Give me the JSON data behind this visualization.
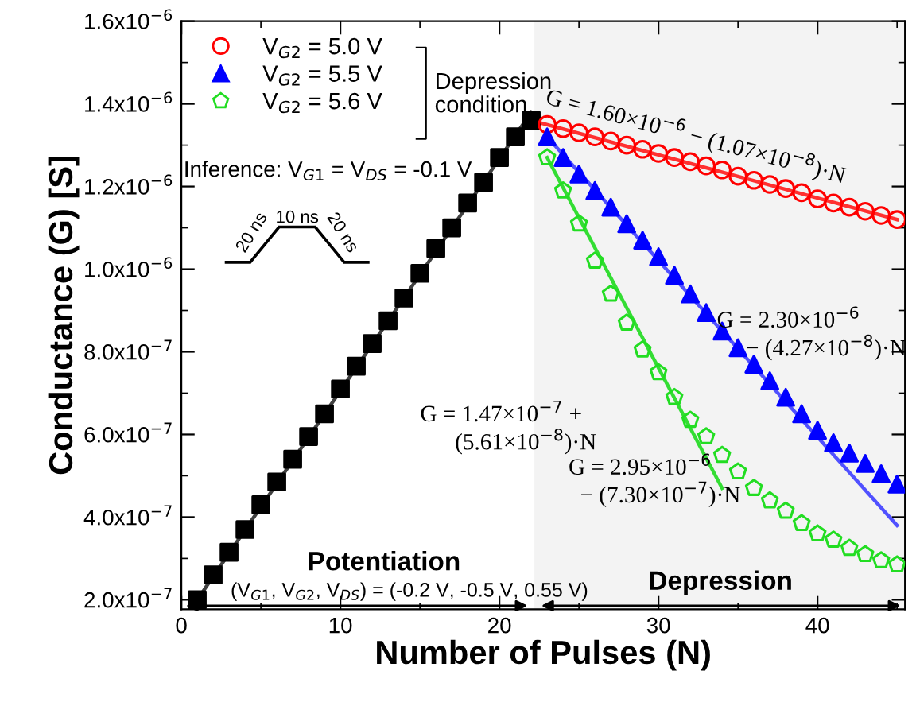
{
  "chart_data": {
    "type": "scatter",
    "xlabel": "Number of Pulses (N)",
    "ylabel": "Conductance (G) [S]",
    "xlim": [
      0,
      45.5
    ],
    "xticks": [
      0,
      10,
      20,
      30,
      40
    ],
    "ylim": [
      1.77e-07,
      1.6e-06
    ],
    "yticks": [
      {
        "value": 2e-07,
        "label": "2.0x10$^{−7}$"
      },
      {
        "value": 4e-07,
        "label": "4.0x10$^{−7}$"
      },
      {
        "value": 6e-07,
        "label": "6.0x10$^{−7}$"
      },
      {
        "value": 8e-07,
        "label": "8.0x10$^{−7}$"
      },
      {
        "value": 1e-06,
        "label": "1.0x10$^{−6}$"
      },
      {
        "value": 1.2e-06,
        "label": "1.2x10$^{−6}$"
      },
      {
        "value": 1.4e-06,
        "label": "1.4x10$^{−6}$"
      },
      {
        "value": 1.6e-06,
        "label": "1.6x10$^{−6}$"
      }
    ],
    "grid": false,
    "legend": "top left",
    "bands": [
      {
        "axis": "x",
        "from": 22.2,
        "to": 45.5,
        "color": "#f3f3f3"
      }
    ],
    "series": [
      {
        "type": "line",
        "color": "#404040",
        "x": [
          1,
          22
        ],
        "values": [
          2e-07,
          1.38e-06
        ]
      },
      {
        "type": "line",
        "color": "#ff3030",
        "x": [
          22,
          45
        ],
        "values": [
          1.36e-06,
          1.12e-06
        ]
      },
      {
        "type": "line",
        "color": "#5050ff",
        "x": [
          23,
          45
        ],
        "values": [
          1.32e-06,
          3.8e-07
        ]
      },
      {
        "type": "line",
        "color": "#33dd33",
        "x": [
          23,
          34
        ],
        "values": [
          1.27e-06,
          4.7e-07
        ]
      },
      {
        "marker": "square",
        "color": "#000000",
        "x": [
          1,
          2,
          3,
          4,
          5,
          6,
          7,
          8,
          9,
          10,
          11,
          12,
          13,
          14,
          15,
          16,
          17,
          18,
          19,
          20,
          21,
          22
        ],
        "values": [
          2e-07,
          2.6e-07,
          3.15e-07,
          3.7e-07,
          4.3e-07,
          4.85e-07,
          5.4e-07,
          5.95e-07,
          6.5e-07,
          7.1e-07,
          7.65e-07,
          8.2e-07,
          8.75e-07,
          9.3e-07,
          9.9e-07,
          1.05e-06,
          1.1e-06,
          1.16e-06,
          1.21e-06,
          1.27e-06,
          1.32e-06,
          1.36e-06
        ]
      },
      {
        "name": "V$_{G2}$ = 5.0 V",
        "marker": "circle",
        "color": "#ff0000",
        "x": [
          23,
          24,
          25,
          26,
          27,
          28,
          29,
          30,
          31,
          32,
          33,
          34,
          35,
          36,
          37,
          38,
          39,
          40,
          41,
          42,
          43,
          44,
          45
        ],
        "values": [
          1.35e-06,
          1.34e-06,
          1.33e-06,
          1.32e-06,
          1.31e-06,
          1.3e-06,
          1.29e-06,
          1.28e-06,
          1.27e-06,
          1.26e-06,
          1.25e-06,
          1.24e-06,
          1.225e-06,
          1.215e-06,
          1.205e-06,
          1.195e-06,
          1.185e-06,
          1.17e-06,
          1.16e-06,
          1.15e-06,
          1.14e-06,
          1.13e-06,
          1.12e-06
        ]
      },
      {
        "name": "V$_{G2}$ = 5.5 V",
        "marker": "triangle",
        "color": "#0000ff",
        "x": [
          23,
          24,
          25,
          26,
          27,
          28,
          29,
          30,
          31,
          32,
          33,
          34,
          35,
          36,
          37,
          38,
          39,
          40,
          41,
          42,
          43,
          44,
          45
        ],
        "values": [
          1.32e-06,
          1.27e-06,
          1.23e-06,
          1.19e-06,
          1.15e-06,
          1.11e-06,
          1.07e-06,
          1.03e-06,
          9.85e-07,
          9.4e-07,
          8.95e-07,
          8.5e-07,
          8.1e-07,
          7.7e-07,
          7.3e-07,
          6.9e-07,
          6.5e-07,
          6.1e-07,
          5.8e-07,
          5.55e-07,
          5.3e-07,
          5.05e-07,
          4.8e-07
        ]
      },
      {
        "name": "V$_{G2}$ = 5.6 V",
        "color": "#22dd22",
        "x": [
          23,
          24,
          25,
          26,
          27,
          28,
          29,
          30,
          31,
          32,
          33,
          34,
          35,
          36,
          37,
          38,
          39,
          40,
          41,
          42,
          43,
          44,
          45
        ],
        "values": [
          1.27e-06,
          1.19e-06,
          1.11e-06,
          1.02e-06,
          9.4e-07,
          8.7e-07,
          8.05e-07,
          7.5e-07,
          6.9e-07,
          6.35e-07,
          5.95e-07,
          5.5e-07,
          5.1e-07,
          4.7e-07,
          4.4e-07,
          4.15e-07,
          3.85e-07,
          3.6e-07,
          3.45e-07,
          3.25e-07,
          3.1e-07,
          2.95e-07,
          2.85e-07
        ]
      }
    ],
    "annotations": [
      "Depression\ncondition",
      "Inference: V$_{G1}$ = V$_{DS}$ = -0.1 V",
      "10 ns",
      "20 ns",
      "20 ns",
      "G = 1.60×10$^{−6}$ − (1.07×10$^{−8}$)·N",
      "G = 2.30×10$^{−6}$\n     − (4.27×10$^{−8}$)·N",
      "G = 2.95×10$^{−6}$\n  − (7.30×10$^{−7}$)·N",
      "G = 1.47×10$^{−7}$ +\n      (5.61×10$^{−8}$)·N",
      "Potentiation",
      "(V$_{G1}$, V$_{G2}$, V$_{DS}$) = (-0.2 V, -0.5 V, 0.55 V)",
      "Depression"
    ]
  }
}
